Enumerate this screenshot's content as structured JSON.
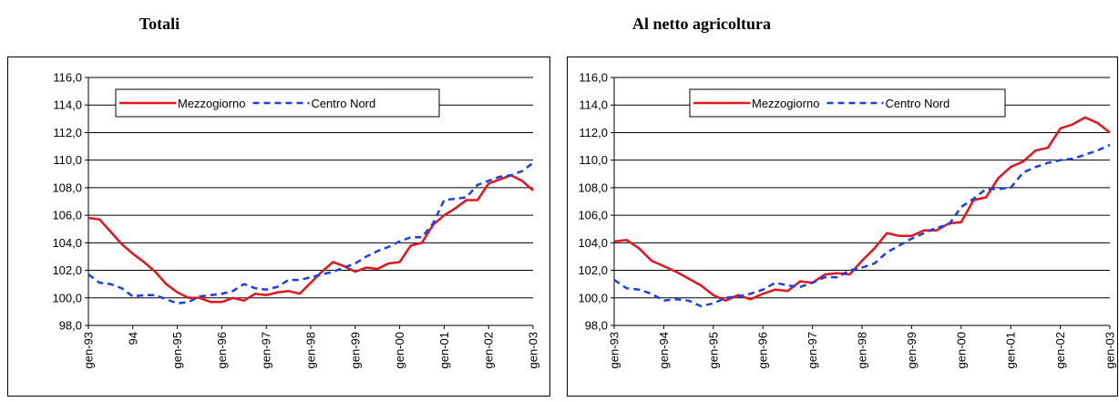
{
  "chart_data": [
    {
      "type": "line",
      "title": "Totali",
      "categories": [
        "gen-93",
        null,
        null,
        null,
        "94",
        null,
        null,
        null,
        "gen-95",
        null,
        null,
        null,
        "gen-96",
        null,
        null,
        null,
        "gen-97",
        null,
        null,
        null,
        "gen-98",
        null,
        null,
        null,
        "gen-99",
        null,
        null,
        null,
        "gen-00",
        null,
        null,
        null,
        "gen-01",
        null,
        null,
        null,
        "gen-02",
        null,
        null,
        null,
        "gen-03"
      ],
      "series": [
        {
          "name": "Mezzogiorno",
          "color": "#e8141b",
          "line_style": "solid",
          "values": [
            105.8,
            105.7,
            104.8,
            103.9,
            103.2,
            102.6,
            101.9,
            101.0,
            100.4,
            100.0,
            100.0,
            99.7,
            99.7,
            100.0,
            99.8,
            100.3,
            100.2,
            100.4,
            100.5,
            100.3,
            101.1,
            101.9,
            102.6,
            102.3,
            101.9,
            102.2,
            102.1,
            102.5,
            102.6,
            103.8,
            104.0,
            105.3,
            106.0,
            106.5,
            107.1,
            107.1,
            108.3,
            108.6,
            108.9,
            108.5,
            107.8
          ]
        },
        {
          "name": "Centro Nord",
          "color": "#1a3ff0",
          "line_style": "dashed",
          "values": [
            101.7,
            101.1,
            101.0,
            100.7,
            100.1,
            100.2,
            100.2,
            99.9,
            99.6,
            99.7,
            100.1,
            100.2,
            100.3,
            100.5,
            101.0,
            100.7,
            100.6,
            100.8,
            101.3,
            101.3,
            101.5,
            101.7,
            101.9,
            102.2,
            102.5,
            103.0,
            103.4,
            103.7,
            104.1,
            104.4,
            104.4,
            105.4,
            107.1,
            107.2,
            107.3,
            108.2,
            108.5,
            108.8,
            108.9,
            109.2,
            109.8
          ]
        }
      ],
      "ylim": [
        98,
        116
      ],
      "yticks": [
        {
          "value": 98,
          "label": "98,0"
        },
        {
          "value": 100,
          "label": "100,0"
        },
        {
          "value": 102,
          "label": "102,0"
        },
        {
          "value": 104,
          "label": "104,0"
        },
        {
          "value": 106,
          "label": "106,0"
        },
        {
          "value": 108,
          "label": "108,0"
        },
        {
          "value": 110,
          "label": "110,0"
        },
        {
          "value": 112,
          "label": "112,0"
        },
        {
          "value": 114,
          "label": "114,0"
        },
        {
          "value": 116,
          "label": "116,0"
        }
      ],
      "grid": true,
      "legend": "top-left"
    },
    {
      "type": "line",
      "title": "Al netto agricoltura",
      "categories": [
        "gen-93",
        null,
        null,
        null,
        "gen-94",
        null,
        null,
        null,
        "gen-95",
        null,
        null,
        null,
        "gen-96",
        null,
        null,
        null,
        "gen-97",
        null,
        null,
        null,
        "gen-98",
        null,
        null,
        null,
        "gen-99",
        null,
        null,
        null,
        "gen-00",
        null,
        null,
        null,
        "gen-01",
        null,
        null,
        null,
        "gen-02",
        null,
        null,
        null,
        "gen-03"
      ],
      "series": [
        {
          "name": "Mezzogiorno",
          "color": "#e8141b",
          "line_style": "solid",
          "values": [
            104.1,
            104.2,
            103.6,
            102.7,
            102.3,
            101.9,
            101.4,
            100.9,
            100.2,
            99.8,
            100.2,
            99.9,
            100.3,
            100.6,
            100.5,
            101.2,
            101.1,
            101.7,
            101.8,
            101.7,
            102.7,
            103.6,
            104.7,
            104.5,
            104.5,
            104.9,
            104.9,
            105.4,
            105.5,
            107.1,
            107.3,
            108.7,
            109.5,
            109.9,
            110.7,
            110.9,
            112.3,
            112.6,
            113.1,
            112.7,
            112.0
          ]
        },
        {
          "name": "Centro Nord",
          "color": "#1a3ff0",
          "line_style": "dashed",
          "values": [
            101.3,
            100.7,
            100.6,
            100.3,
            99.8,
            99.9,
            99.8,
            99.4,
            99.6,
            100.0,
            100.1,
            100.3,
            100.6,
            101.1,
            100.9,
            100.8,
            101.1,
            101.5,
            101.5,
            102.0,
            102.2,
            102.5,
            103.3,
            103.8,
            104.3,
            104.7,
            105.1,
            105.3,
            106.6,
            107.2,
            107.9,
            107.9,
            108.0,
            109.1,
            109.5,
            109.8,
            110.0,
            110.1,
            110.4,
            110.7,
            111.1
          ]
        }
      ],
      "ylim": [
        98,
        116
      ],
      "yticks": [
        {
          "value": 98,
          "label": "98,0"
        },
        {
          "value": 100,
          "label": "100,0"
        },
        {
          "value": 102,
          "label": "102,0"
        },
        {
          "value": 104,
          "label": "104,0"
        },
        {
          "value": 106,
          "label": "106,0"
        },
        {
          "value": 108,
          "label": "108,0"
        },
        {
          "value": 110,
          "label": "110,0"
        },
        {
          "value": 112,
          "label": "112,0"
        },
        {
          "value": 114,
          "label": "114,0"
        },
        {
          "value": 116,
          "label": "116,0"
        }
      ],
      "grid": true,
      "legend": "top-left"
    }
  ]
}
